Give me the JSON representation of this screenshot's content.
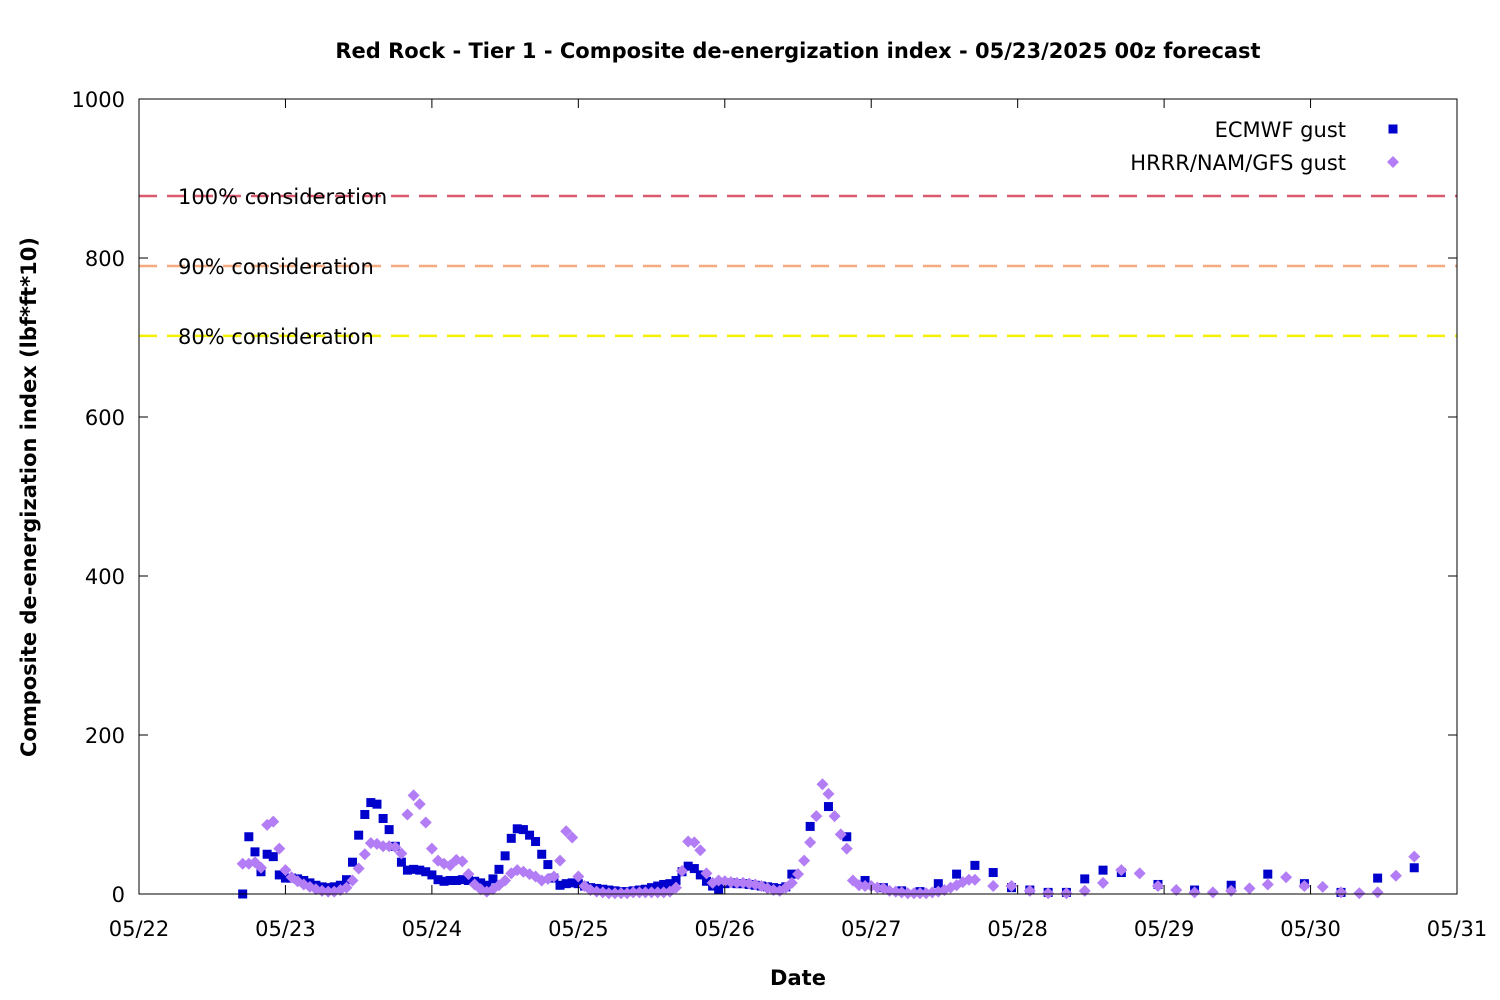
{
  "chart_data": {
    "type": "scatter",
    "title": "Red Rock - Tier 1 - Composite de-energization index - 05/23/2025 00z forecast",
    "xlabel": "Date",
    "ylabel": "Composite de-energization index (lbf*ft*10)",
    "xlim": [
      0,
      9
    ],
    "ylim": [
      0,
      1000
    ],
    "x_ticks": [
      {
        "value": 0,
        "label": "05/22"
      },
      {
        "value": 1,
        "label": "05/23"
      },
      {
        "value": 2,
        "label": "05/24"
      },
      {
        "value": 3,
        "label": "05/25"
      },
      {
        "value": 4,
        "label": "05/26"
      },
      {
        "value": 5,
        "label": "05/27"
      },
      {
        "value": 6,
        "label": "05/28"
      },
      {
        "value": 7,
        "label": "05/29"
      },
      {
        "value": 8,
        "label": "05/30"
      },
      {
        "value": 9,
        "label": "05/31"
      }
    ],
    "y_ticks": [
      0,
      200,
      400,
      600,
      800,
      1000
    ],
    "x_note": "x values are in days after 05/22 00z",
    "grid": false,
    "legend_position": "top-right",
    "thresholds": [
      {
        "label": "100% consideration",
        "value": 878,
        "color": "#dc5a6e"
      },
      {
        "label": "90% consideration",
        "value": 790,
        "color": "#f5aa80"
      },
      {
        "label": "80% consideration",
        "value": 702,
        "color": "#f5f000"
      }
    ],
    "series": [
      {
        "name": "ECMWF gust",
        "marker": "square",
        "color": "#0000cc",
        "points": [
          [
            0.708,
            0
          ],
          [
            0.75,
            72
          ],
          [
            0.792,
            53
          ],
          [
            0.833,
            28
          ],
          [
            0.875,
            50
          ],
          [
            0.917,
            47
          ],
          [
            0.958,
            24
          ],
          [
            1.0,
            20
          ],
          [
            1.042,
            20
          ],
          [
            1.083,
            19
          ],
          [
            1.125,
            17
          ],
          [
            1.167,
            14
          ],
          [
            1.208,
            11
          ],
          [
            1.25,
            9
          ],
          [
            1.292,
            8
          ],
          [
            1.333,
            9
          ],
          [
            1.375,
            11
          ],
          [
            1.417,
            18
          ],
          [
            1.458,
            40
          ],
          [
            1.5,
            74
          ],
          [
            1.542,
            100
          ],
          [
            1.583,
            115
          ],
          [
            1.625,
            113
          ],
          [
            1.667,
            95
          ],
          [
            1.708,
            81
          ],
          [
            1.75,
            60
          ],
          [
            1.792,
            40
          ],
          [
            1.833,
            30
          ],
          [
            1.875,
            31
          ],
          [
            1.917,
            30
          ],
          [
            1.958,
            28
          ],
          [
            2.0,
            24
          ],
          [
            2.042,
            18
          ],
          [
            2.083,
            16
          ],
          [
            2.125,
            17
          ],
          [
            2.167,
            17
          ],
          [
            2.208,
            18
          ],
          [
            2.25,
            17
          ],
          [
            2.292,
            16
          ],
          [
            2.333,
            14
          ],
          [
            2.375,
            11
          ],
          [
            2.417,
            19
          ],
          [
            2.458,
            31
          ],
          [
            2.5,
            48
          ],
          [
            2.542,
            70
          ],
          [
            2.583,
            82
          ],
          [
            2.625,
            81
          ],
          [
            2.667,
            74
          ],
          [
            2.708,
            66
          ],
          [
            2.75,
            50
          ],
          [
            2.792,
            37
          ],
          [
            2.833,
            20
          ],
          [
            2.875,
            11
          ],
          [
            2.917,
            13
          ],
          [
            2.958,
            14
          ],
          [
            3.0,
            13
          ],
          [
            3.042,
            10
          ],
          [
            3.083,
            8
          ],
          [
            3.125,
            7
          ],
          [
            3.167,
            6
          ],
          [
            3.208,
            5
          ],
          [
            3.25,
            4
          ],
          [
            3.292,
            3
          ],
          [
            3.333,
            3
          ],
          [
            3.375,
            4
          ],
          [
            3.417,
            5
          ],
          [
            3.458,
            6
          ],
          [
            3.5,
            8
          ],
          [
            3.542,
            10
          ],
          [
            3.583,
            12
          ],
          [
            3.625,
            13
          ],
          [
            3.667,
            17
          ],
          [
            3.708,
            28
          ],
          [
            3.75,
            35
          ],
          [
            3.792,
            32
          ],
          [
            3.833,
            24
          ],
          [
            3.875,
            16
          ],
          [
            3.917,
            10
          ],
          [
            3.958,
            6
          ],
          [
            4.0,
            13
          ],
          [
            4.042,
            14
          ],
          [
            4.083,
            13
          ],
          [
            4.125,
            13
          ],
          [
            4.167,
            12
          ],
          [
            4.208,
            11
          ],
          [
            4.25,
            10
          ],
          [
            4.292,
            9
          ],
          [
            4.333,
            8
          ],
          [
            4.375,
            7
          ],
          [
            4.417,
            9
          ],
          [
            4.458,
            25
          ],
          [
            4.583,
            85
          ],
          [
            4.708,
            110
          ],
          [
            4.833,
            72
          ],
          [
            4.958,
            17
          ],
          [
            5.083,
            8
          ],
          [
            5.208,
            4
          ],
          [
            5.333,
            3
          ],
          [
            5.458,
            13
          ],
          [
            5.583,
            25
          ],
          [
            5.708,
            36
          ],
          [
            5.833,
            27
          ],
          [
            5.958,
            8
          ],
          [
            6.083,
            5
          ],
          [
            6.208,
            2
          ],
          [
            6.333,
            2
          ],
          [
            6.458,
            19
          ],
          [
            6.583,
            30
          ],
          [
            6.708,
            27
          ],
          [
            6.958,
            12
          ],
          [
            7.208,
            5
          ],
          [
            7.458,
            11
          ],
          [
            7.708,
            25
          ],
          [
            7.958,
            13
          ],
          [
            8.208,
            2
          ],
          [
            8.458,
            20
          ],
          [
            8.708,
            33
          ]
        ]
      },
      {
        "name": "HRRR/NAM/GFS gust",
        "marker": "diamond",
        "color": "#b37df5",
        "points": [
          [
            0.708,
            38
          ],
          [
            0.75,
            38
          ],
          [
            0.792,
            40
          ],
          [
            0.833,
            33
          ],
          [
            0.875,
            87
          ],
          [
            0.917,
            91
          ],
          [
            0.958,
            57
          ],
          [
            1.0,
            30
          ],
          [
            1.042,
            21
          ],
          [
            1.083,
            16
          ],
          [
            1.125,
            12
          ],
          [
            1.167,
            9
          ],
          [
            1.208,
            6
          ],
          [
            1.25,
            4
          ],
          [
            1.292,
            3
          ],
          [
            1.333,
            3
          ],
          [
            1.375,
            5
          ],
          [
            1.417,
            8
          ],
          [
            1.458,
            17
          ],
          [
            1.5,
            32
          ],
          [
            1.542,
            50
          ],
          [
            1.583,
            64
          ],
          [
            1.625,
            63
          ],
          [
            1.667,
            60
          ],
          [
            1.708,
            60
          ],
          [
            1.75,
            59
          ],
          [
            1.792,
            51
          ],
          [
            1.833,
            100
          ],
          [
            1.875,
            124
          ],
          [
            1.917,
            113
          ],
          [
            1.958,
            90
          ],
          [
            2.0,
            57
          ],
          [
            2.042,
            42
          ],
          [
            2.083,
            38
          ],
          [
            2.125,
            36
          ],
          [
            2.167,
            43
          ],
          [
            2.208,
            41
          ],
          [
            2.25,
            25
          ],
          [
            2.292,
            12
          ],
          [
            2.333,
            6
          ],
          [
            2.375,
            3
          ],
          [
            2.417,
            6
          ],
          [
            2.458,
            11
          ],
          [
            2.5,
            17
          ],
          [
            2.542,
            26
          ],
          [
            2.583,
            30
          ],
          [
            2.625,
            28
          ],
          [
            2.667,
            25
          ],
          [
            2.708,
            22
          ],
          [
            2.75,
            17
          ],
          [
            2.792,
            19
          ],
          [
            2.833,
            22
          ],
          [
            2.875,
            42
          ],
          [
            2.917,
            79
          ],
          [
            2.958,
            71
          ],
          [
            3.0,
            22
          ],
          [
            3.042,
            10
          ],
          [
            3.083,
            5
          ],
          [
            3.125,
            3
          ],
          [
            3.167,
            2
          ],
          [
            3.208,
            1
          ],
          [
            3.25,
            1
          ],
          [
            3.292,
            1
          ],
          [
            3.333,
            1
          ],
          [
            3.375,
            2
          ],
          [
            3.417,
            2
          ],
          [
            3.458,
            2
          ],
          [
            3.5,
            2
          ],
          [
            3.542,
            2
          ],
          [
            3.583,
            2
          ],
          [
            3.625,
            3
          ],
          [
            3.667,
            8
          ],
          [
            3.708,
            29
          ],
          [
            3.75,
            66
          ],
          [
            3.792,
            65
          ],
          [
            3.833,
            55
          ],
          [
            3.875,
            26
          ],
          [
            3.917,
            14
          ],
          [
            3.958,
            17
          ],
          [
            4.0,
            16
          ],
          [
            4.042,
            15
          ],
          [
            4.083,
            14
          ],
          [
            4.125,
            14
          ],
          [
            4.167,
            13
          ],
          [
            4.208,
            12
          ],
          [
            4.25,
            10
          ],
          [
            4.292,
            7
          ],
          [
            4.333,
            5
          ],
          [
            4.375,
            4
          ],
          [
            4.417,
            8
          ],
          [
            4.458,
            14
          ],
          [
            4.5,
            25
          ],
          [
            4.542,
            42
          ],
          [
            4.583,
            65
          ],
          [
            4.625,
            98
          ],
          [
            4.667,
            138
          ],
          [
            4.708,
            126
          ],
          [
            4.75,
            98
          ],
          [
            4.792,
            75
          ],
          [
            4.833,
            57
          ],
          [
            4.875,
            17
          ],
          [
            4.917,
            11
          ],
          [
            4.958,
            10
          ],
          [
            5.0,
            10
          ],
          [
            5.042,
            8
          ],
          [
            5.083,
            7
          ],
          [
            5.125,
            4
          ],
          [
            5.167,
            3
          ],
          [
            5.208,
            2
          ],
          [
            5.25,
            1
          ],
          [
            5.292,
            1
          ],
          [
            5.333,
            1
          ],
          [
            5.375,
            1
          ],
          [
            5.417,
            2
          ],
          [
            5.458,
            3
          ],
          [
            5.5,
            5
          ],
          [
            5.542,
            8
          ],
          [
            5.583,
            11
          ],
          [
            5.625,
            15
          ],
          [
            5.667,
            18
          ],
          [
            5.708,
            18
          ],
          [
            5.833,
            10
          ],
          [
            5.958,
            10
          ],
          [
            6.083,
            4
          ],
          [
            6.208,
            1
          ],
          [
            6.333,
            1
          ],
          [
            6.458,
            4
          ],
          [
            6.583,
            14
          ],
          [
            6.708,
            30
          ],
          [
            6.833,
            26
          ],
          [
            6.958,
            10
          ],
          [
            7.083,
            5
          ],
          [
            7.208,
            2
          ],
          [
            7.333,
            2
          ],
          [
            7.458,
            4
          ],
          [
            7.583,
            7
          ],
          [
            7.708,
            12
          ],
          [
            7.833,
            21
          ],
          [
            7.958,
            10
          ],
          [
            8.083,
            9
          ],
          [
            8.208,
            2
          ],
          [
            8.333,
            1
          ],
          [
            8.458,
            2
          ],
          [
            8.583,
            23
          ],
          [
            8.708,
            47
          ]
        ]
      }
    ]
  }
}
